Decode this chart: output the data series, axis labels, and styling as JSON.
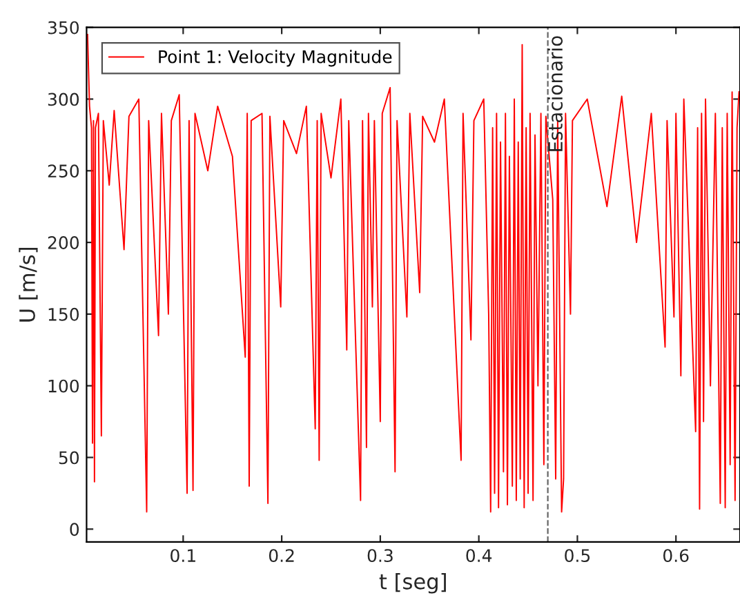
{
  "chart_data": {
    "type": "line",
    "xlabel": "t [seg]",
    "ylabel": "U [m/s]",
    "xlim": [
      0.002,
      0.665
    ],
    "ylim": [
      -9,
      350
    ],
    "xticks": [
      0.1,
      0.2,
      0.3,
      0.4,
      0.5,
      0.6
    ],
    "yticks": [
      0,
      50,
      100,
      150,
      200,
      250,
      300,
      350
    ],
    "grid": false,
    "legend": "top left",
    "marker": "none",
    "line_style": "solid",
    "ref_lines": [
      {
        "axis": "x",
        "value": 0.47,
        "label": "Estacionario",
        "color": "#666666",
        "line_style": "dashed"
      }
    ],
    "series": [
      {
        "name": "Point 1: Velocity Magnitude",
        "color": "#ff0000",
        "x": [
          0.003,
          0.005,
          0.007,
          0.008,
          0.009,
          0.01,
          0.011,
          0.014,
          0.017,
          0.019,
          0.025,
          0.03,
          0.04,
          0.045,
          0.055,
          0.063,
          0.065,
          0.075,
          0.078,
          0.085,
          0.088,
          0.096,
          0.104,
          0.106,
          0.11,
          0.112,
          0.125,
          0.135,
          0.15,
          0.163,
          0.165,
          0.167,
          0.169,
          0.18,
          0.186,
          0.188,
          0.199,
          0.202,
          0.215,
          0.225,
          0.234,
          0.236,
          0.238,
          0.24,
          0.25,
          0.26,
          0.266,
          0.268,
          0.28,
          0.282,
          0.286,
          0.288,
          0.292,
          0.294,
          0.3,
          0.302,
          0.31,
          0.315,
          0.317,
          0.327,
          0.33,
          0.34,
          0.343,
          0.355,
          0.365,
          0.382,
          0.384,
          0.392,
          0.395,
          0.405,
          0.41,
          0.412,
          0.414,
          0.416,
          0.418,
          0.42,
          0.422,
          0.425,
          0.427,
          0.429,
          0.431,
          0.434,
          0.436,
          0.438,
          0.44,
          0.442,
          0.444,
          0.446,
          0.448,
          0.45,
          0.452,
          0.455,
          0.457,
          0.46,
          0.463,
          0.466,
          0.468,
          0.475,
          0.478,
          0.48,
          0.484,
          0.486,
          0.488,
          0.493,
          0.495,
          0.51,
          0.53,
          0.545,
          0.56,
          0.575,
          0.589,
          0.591,
          0.598,
          0.6,
          0.605,
          0.608,
          0.62,
          0.622,
          0.624,
          0.626,
          0.628,
          0.63,
          0.635,
          0.64,
          0.645,
          0.647,
          0.65,
          0.652,
          0.655,
          0.657,
          0.66,
          0.662,
          0.664
        ],
        "values": [
          345,
          295,
          280,
          60,
          285,
          33,
          280,
          290,
          65,
          285,
          240,
          292,
          195,
          288,
          300,
          12,
          285,
          135,
          290,
          150,
          285,
          303,
          25,
          285,
          27,
          290,
          250,
          295,
          260,
          120,
          290,
          30,
          285,
          290,
          18,
          288,
          155,
          285,
          262,
          295,
          70,
          285,
          48,
          290,
          245,
          300,
          125,
          285,
          20,
          285,
          57,
          290,
          155,
          285,
          75,
          290,
          308,
          40,
          285,
          148,
          290,
          165,
          288,
          270,
          300,
          48,
          290,
          132,
          285,
          300,
          150,
          12,
          280,
          25,
          290,
          15,
          270,
          40,
          290,
          17,
          260,
          30,
          300,
          20,
          270,
          35,
          338,
          15,
          280,
          25,
          290,
          20,
          275,
          100,
          290,
          45,
          288,
          230,
          35,
          285,
          12,
          35,
          290,
          150,
          285,
          300,
          225,
          302,
          200,
          290,
          127,
          285,
          148,
          290,
          107,
          300,
          68,
          280,
          14,
          290,
          75,
          300,
          100,
          290,
          18,
          280,
          15,
          290,
          45,
          305,
          20,
          280,
          305
        ]
      }
    ]
  }
}
